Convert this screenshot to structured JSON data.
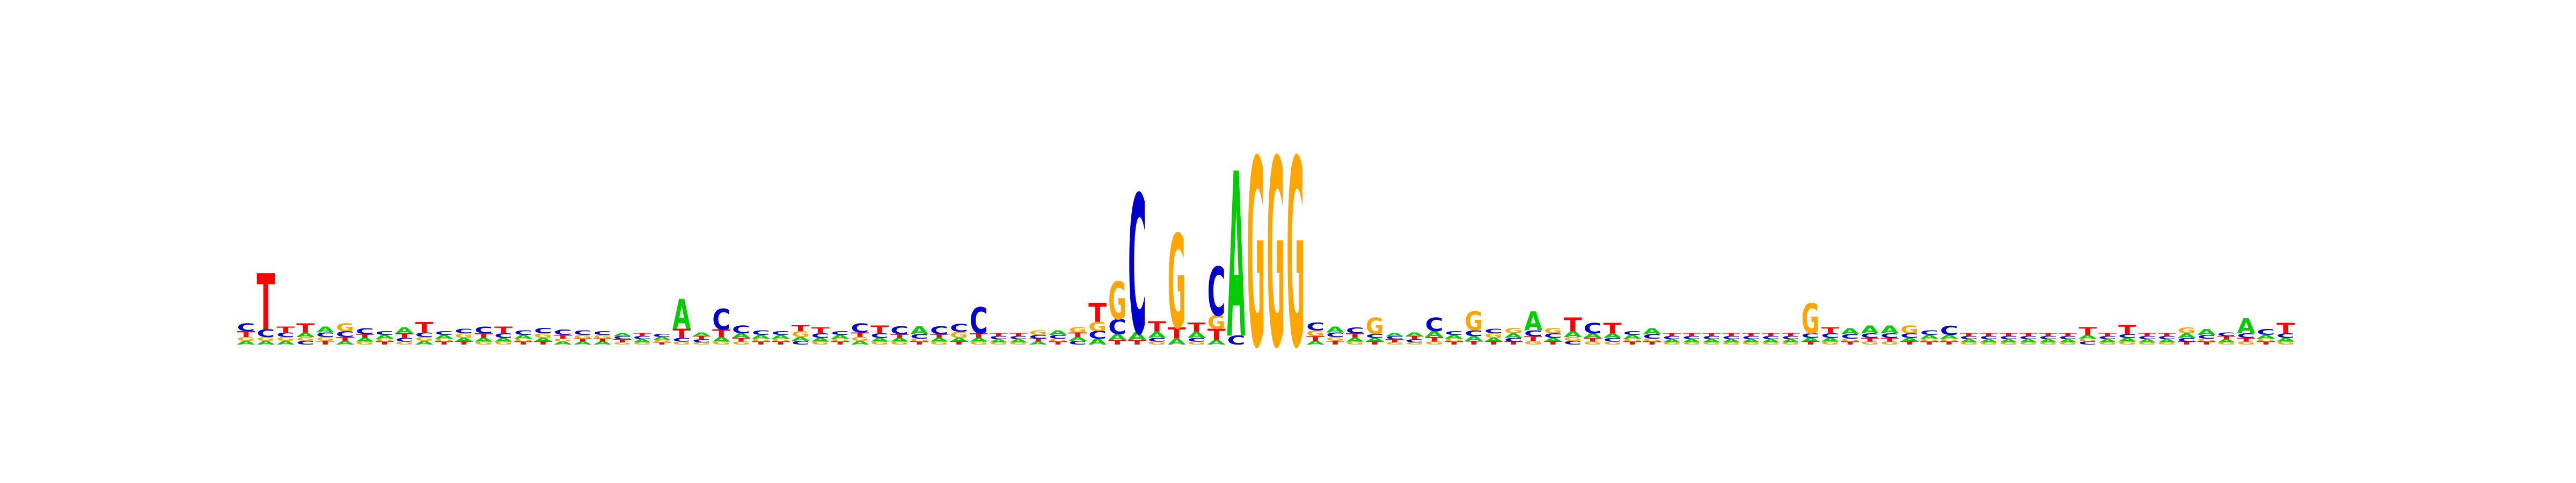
{
  "chart_data": {
    "type": "sequence-logo",
    "colors": {
      "A": "#00cc00",
      "C": "#0000cc",
      "G": "#ffa500",
      "T": "#ff0000"
    },
    "positions": [
      {
        "C": 0.1,
        "T": 0.08,
        "A": 0.05,
        "G": 0.05
      },
      {
        "T": 0.75,
        "C": 0.1,
        "A": 0.05,
        "G": 0.05
      },
      {
        "T": 0.08,
        "C": 0.06,
        "A": 0.05,
        "G": 0.05
      },
      {
        "T": 0.12,
        "A": 0.06,
        "C": 0.05,
        "G": 0.05
      },
      {
        "A": 0.08,
        "C": 0.06,
        "T": 0.05,
        "G": 0.05
      },
      {
        "G": 0.1,
        "C": 0.08,
        "A": 0.05,
        "T": 0.05
      },
      {
        "C": 0.08,
        "A": 0.05,
        "T": 0.05,
        "G": 0.04
      },
      {
        "A": 0.05,
        "C": 0.05,
        "T": 0.04,
        "G": 0.04
      },
      {
        "A": 0.08,
        "T": 0.06,
        "C": 0.05,
        "G": 0.04
      },
      {
        "T": 0.14,
        "C": 0.06,
        "A": 0.05,
        "G": 0.05
      },
      {
        "A": 0.05,
        "C": 0.05,
        "T": 0.04,
        "G": 0.04
      },
      {
        "G": 0.06,
        "C": 0.06,
        "A": 0.05,
        "T": 0.04
      },
      {
        "C": 0.09,
        "T": 0.06,
        "A": 0.05,
        "G": 0.04
      },
      {
        "T": 0.09,
        "C": 0.06,
        "A": 0.05,
        "G": 0.04
      },
      {
        "C": 0.06,
        "A": 0.05,
        "T": 0.04,
        "G": 0.04
      },
      {
        "C": 0.07,
        "G": 0.06,
        "A": 0.05,
        "T": 0.04
      },
      {
        "C": 0.07,
        "T": 0.05,
        "A": 0.04,
        "G": 0.04
      },
      {
        "C": 0.06,
        "G": 0.05,
        "A": 0.04,
        "T": 0.04
      },
      {
        "G": 0.05,
        "C": 0.05,
        "A": 0.04,
        "T": 0.04
      },
      {
        "T": 0.04,
        "C": 0.04,
        "A": 0.04,
        "G": 0.03
      },
      {
        "A": 0.04,
        "C": 0.04,
        "T": 0.04,
        "G": 0.03
      },
      {
        "A": 0.04,
        "C": 0.04,
        "T": 0.03,
        "G": 0.03
      },
      {
        "A": 0.4,
        "T": 0.12,
        "C": 0.05,
        "G": 0.04
      },
      {
        "A": 0.05,
        "C": 0.04,
        "T": 0.04,
        "G": 0.03
      },
      {
        "C": 0.28,
        "T": 0.1,
        "A": 0.06,
        "G": 0.04
      },
      {
        "C": 0.1,
        "A": 0.06,
        "T": 0.05,
        "G": 0.04
      },
      {
        "C": 0.06,
        "A": 0.05,
        "T": 0.04,
        "G": 0.04
      },
      {
        "A": 0.05,
        "C": 0.05,
        "T": 0.04,
        "G": 0.04
      },
      {
        "G": 0.08,
        "T": 0.08,
        "C": 0.05,
        "A": 0.05
      },
      {
        "T": 0.08,
        "C": 0.06,
        "A": 0.05,
        "G": 0.04
      },
      {
        "A": 0.05,
        "C": 0.05,
        "T": 0.04,
        "G": 0.04
      },
      {
        "C": 0.12,
        "T": 0.06,
        "A": 0.05,
        "G": 0.05
      },
      {
        "T": 0.1,
        "C": 0.06,
        "A": 0.05,
        "G": 0.04
      },
      {
        "C": 0.1,
        "A": 0.05,
        "T": 0.05,
        "G": 0.04
      },
      {
        "A": 0.1,
        "C": 0.06,
        "T": 0.04,
        "G": 0.04
      },
      {
        "C": 0.1,
        "A": 0.05,
        "T": 0.05,
        "G": 0.04
      },
      {
        "C": 0.1,
        "G": 0.08,
        "A": 0.05,
        "T": 0.04
      },
      {
        "C": 0.35,
        "T": 0.06,
        "A": 0.05,
        "G": 0.04
      },
      {
        "A": 0.04,
        "C": 0.04,
        "T": 0.04,
        "G": 0.03
      },
      {
        "A": 0.04,
        "C": 0.04,
        "T": 0.04,
        "G": 0.03
      },
      {
        "G": 0.06,
        "C": 0.05,
        "A": 0.04,
        "T": 0.04
      },
      {
        "A": 0.06,
        "C": 0.05,
        "T": 0.04,
        "G": 0.04
      },
      {
        "G": 0.07,
        "T": 0.06,
        "C": 0.05,
        "A": 0.05
      },
      {
        "T": 0.25,
        "G": 0.12,
        "C": 0.1,
        "A": 0.08
      },
      {
        "G": 0.5,
        "C": 0.2,
        "A": 0.08,
        "T": 0.06
      },
      {
        "C": 1.85,
        "A": 0.1,
        "T": 0.06
      },
      {
        "T": 0.14,
        "A": 0.08,
        "C": 0.05,
        "G": 0.04
      },
      {
        "G": 1.25,
        "T": 0.15,
        "A": 0.08
      },
      {
        "T": 0.12,
        "A": 0.08,
        "C": 0.05,
        "G": 0.04
      },
      {
        "C": 0.65,
        "G": 0.18,
        "T": 0.15,
        "A": 0.06
      },
      {
        "A": 2.2,
        "C": 0.12
      },
      {
        "G": 2.5
      },
      {
        "G": 2.5
      },
      {
        "G": 2.5
      },
      {
        "C": 0.1,
        "G": 0.08,
        "T": 0.06,
        "A": 0.05
      },
      {
        "A": 0.08,
        "C": 0.06,
        "T": 0.05,
        "G": 0.05
      },
      {
        "C": 0.08,
        "T": 0.06,
        "A": 0.05,
        "G": 0.04
      },
      {
        "G": 0.22,
        "A": 0.05,
        "C": 0.05,
        "T": 0.04
      },
      {
        "T": 0.04,
        "C": 0.04,
        "A": 0.04,
        "G": 0.03
      },
      {
        "A": 0.05,
        "C": 0.04,
        "T": 0.04,
        "G": 0.03
      },
      {
        "C": 0.18,
        "A": 0.08,
        "T": 0.06,
        "G": 0.04
      },
      {
        "A": 0.05,
        "C": 0.05,
        "T": 0.04,
        "G": 0.04
      },
      {
        "G": 0.25,
        "C": 0.08,
        "A": 0.06,
        "T": 0.05
      },
      {
        "G": 0.06,
        "C": 0.06,
        "A": 0.05,
        "T": 0.04
      },
      {
        "G": 0.07,
        "A": 0.06,
        "C": 0.05,
        "T": 0.04
      },
      {
        "A": 0.25,
        "C": 0.08,
        "T": 0.06,
        "G": 0.05
      },
      {
        "G": 0.07,
        "C": 0.06,
        "A": 0.05,
        "T": 0.04
      },
      {
        "T": 0.18,
        "A": 0.08,
        "C": 0.05,
        "G": 0.05
      },
      {
        "C": 0.14,
        "A": 0.06,
        "T": 0.05,
        "G": 0.04
      },
      {
        "T": 0.14,
        "A": 0.06,
        "C": 0.05,
        "G": 0.04
      },
      {
        "A": 0.05,
        "C": 0.05,
        "T": 0.04,
        "G": 0.04
      },
      {
        "A": 0.08,
        "C": 0.06,
        "T": 0.04,
        "G": 0.04
      },
      {
        "A": 0.04,
        "C": 0.04,
        "T": 0.04,
        "G": 0.03
      },
      {
        "A": 0.04,
        "C": 0.04,
        "T": 0.04,
        "G": 0.03
      },
      {
        "A": 0.04,
        "C": 0.04,
        "T": 0.04,
        "G": 0.03
      },
      {
        "A": 0.04,
        "C": 0.04,
        "T": 0.04,
        "G": 0.03
      },
      {
        "A": 0.04,
        "C": 0.04,
        "T": 0.04,
        "G": 0.03
      },
      {
        "A": 0.04,
        "C": 0.04,
        "T": 0.04,
        "G": 0.03
      },
      {
        "A": 0.04,
        "C": 0.04,
        "T": 0.04,
        "G": 0.03
      },
      {
        "G": 0.4,
        "C": 0.06,
        "A": 0.05,
        "T": 0.04
      },
      {
        "T": 0.08,
        "C": 0.06,
        "A": 0.05,
        "G": 0.04
      },
      {
        "A": 0.08,
        "C": 0.06,
        "T": 0.04,
        "G": 0.04
      },
      {
        "A": 0.1,
        "C": 0.06,
        "T": 0.05,
        "G": 0.04
      },
      {
        "A": 0.1,
        "C": 0.06,
        "T": 0.05,
        "G": 0.04
      },
      {
        "G": 0.1,
        "C": 0.06,
        "A": 0.05,
        "T": 0.04
      },
      {
        "C": 0.06,
        "A": 0.05,
        "T": 0.04,
        "G": 0.04
      },
      {
        "C": 0.12,
        "A": 0.05,
        "T": 0.04,
        "G": 0.04
      },
      {
        "A": 0.04,
        "C": 0.04,
        "T": 0.04,
        "G": 0.03
      },
      {
        "A": 0.04,
        "C": 0.04,
        "T": 0.04,
        "G": 0.03
      },
      {
        "A": 0.04,
        "C": 0.04,
        "T": 0.04,
        "G": 0.03
      },
      {
        "A": 0.04,
        "C": 0.04,
        "T": 0.04,
        "G": 0.03
      },
      {
        "A": 0.04,
        "C": 0.04,
        "T": 0.04,
        "G": 0.03
      },
      {
        "A": 0.04,
        "C": 0.04,
        "T": 0.04,
        "G": 0.03
      },
      {
        "T": 0.1,
        "A": 0.05,
        "C": 0.04,
        "G": 0.04
      },
      {
        "A": 0.04,
        "C": 0.04,
        "T": 0.04,
        "G": 0.03
      },
      {
        "T": 0.12,
        "A": 0.05,
        "C": 0.05,
        "G": 0.04
      },
      {
        "A": 0.04,
        "C": 0.04,
        "T": 0.04,
        "G": 0.03
      },
      {
        "A": 0.04,
        "C": 0.04,
        "T": 0.04,
        "G": 0.03
      },
      {
        "G": 0.08,
        "A": 0.06,
        "C": 0.05,
        "T": 0.04
      },
      {
        "A": 0.08,
        "C": 0.05,
        "T": 0.04,
        "G": 0.04
      },
      {
        "C": 0.05,
        "A": 0.04,
        "T": 0.04,
        "G": 0.03
      },
      {
        "A": 0.2,
        "C": 0.06,
        "T": 0.05,
        "G": 0.04
      },
      {
        "C": 0.08,
        "A": 0.05,
        "T": 0.04,
        "G": 0.04
      },
      {
        "T": 0.14,
        "C": 0.06,
        "A": 0.05,
        "G": 0.04
      }
    ]
  }
}
